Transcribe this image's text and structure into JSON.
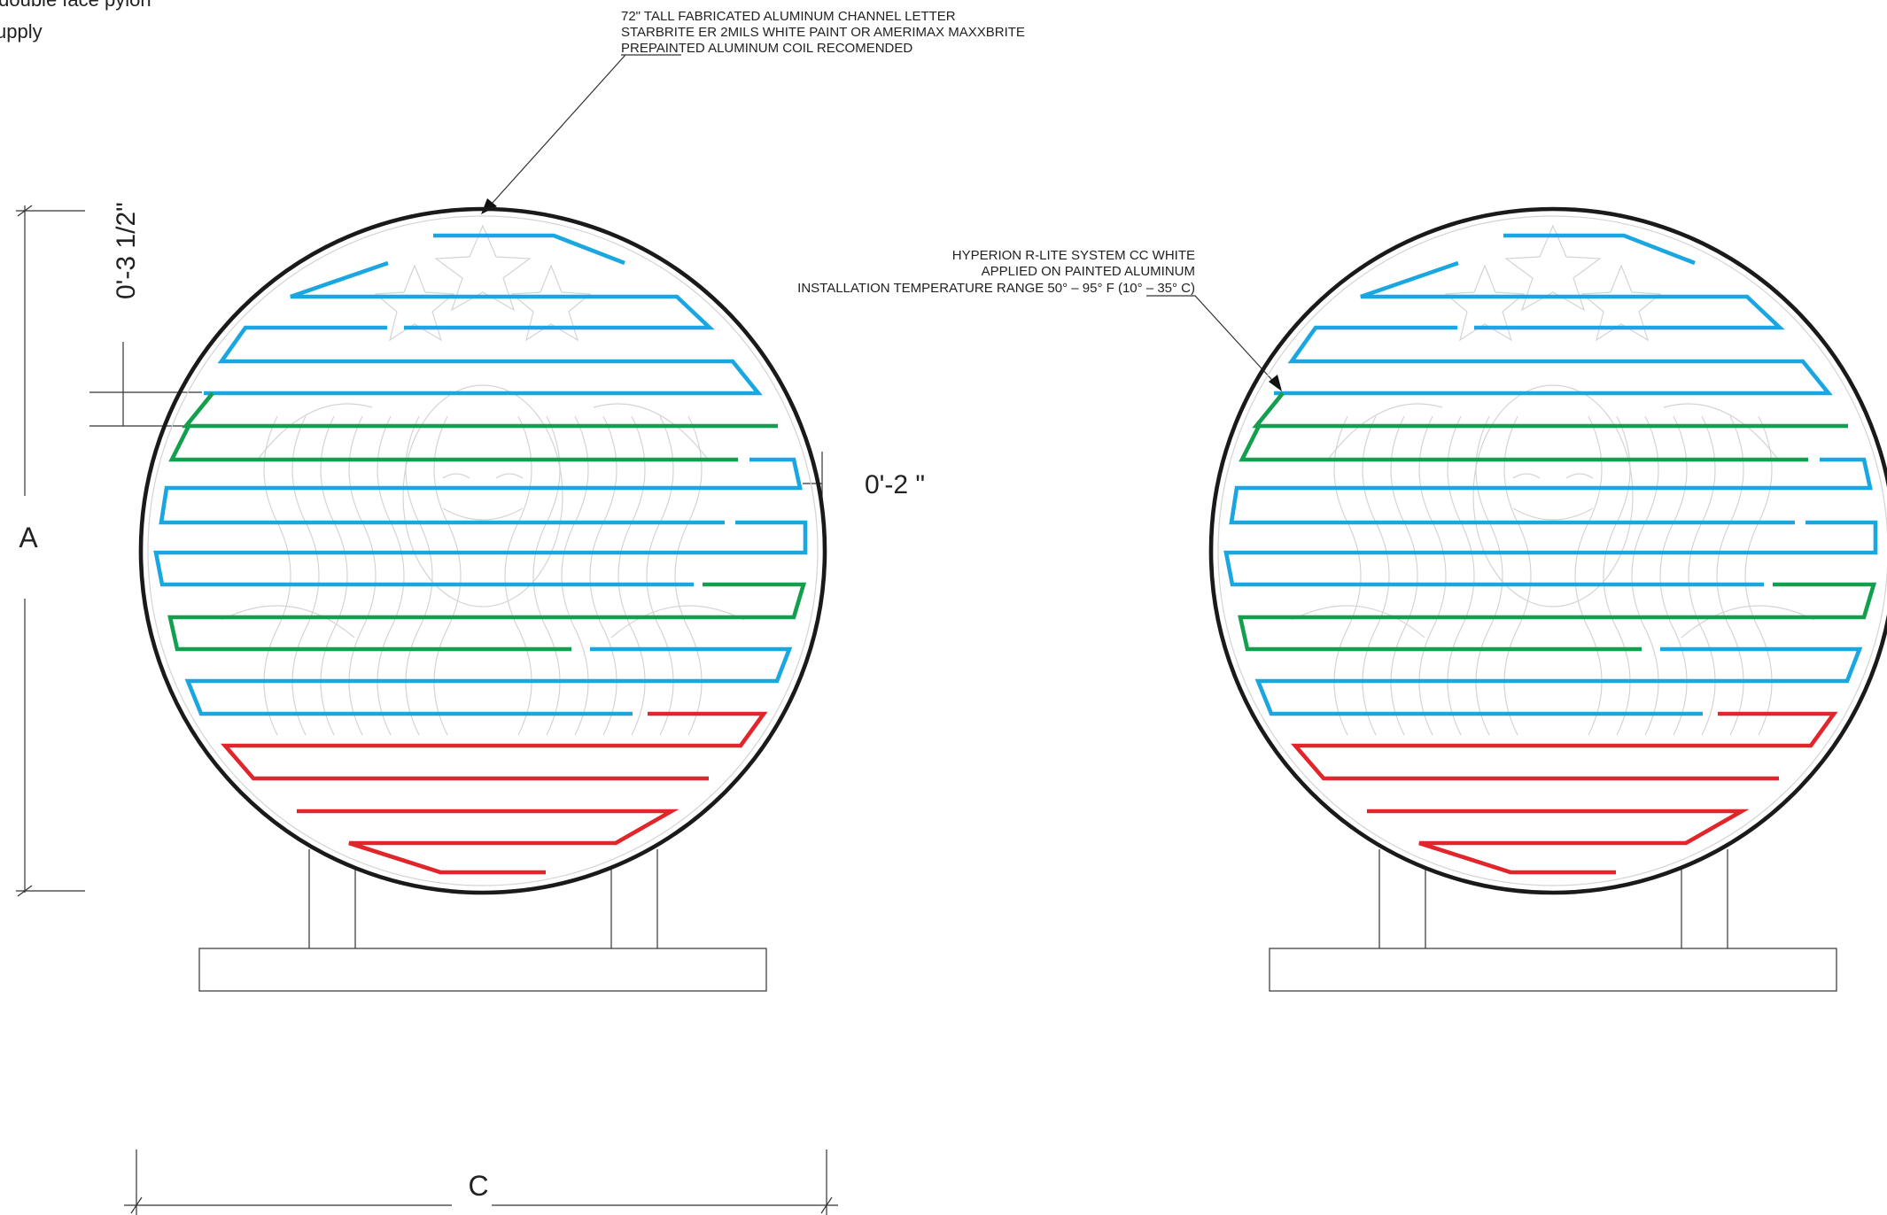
{
  "header": {
    "line1": "/double face pylon",
    "line2": "upply"
  },
  "notes": {
    "channel_letter": [
      "72\" TALL FABRICATED ALUMINUM CHANNEL LETTER",
      "STARBRITE  ER 2MILS WHITE PAINT OR AMERIMAX MAXXBRITE",
      "PREPAINTED ALUMINUM COIL RECOMENDED"
    ],
    "led_system": [
      "HYPERION R-LITE SYSTEM CC WHITE",
      "APPLIED ON PAINTED ALUMINUM",
      "INSTALLATION TEMPERATURE RANGE 50° – 95° F (10° – 35° C)"
    ]
  },
  "dimensions": {
    "top_offset": "0'-3 1/2\"",
    "row_spacing": "0'-2 \"",
    "height_label": "A",
    "width_label": "C"
  },
  "colors": {
    "outline": "#1a1a1a",
    "led_blue": "#1aa7e1",
    "led_green": "#13a04e",
    "led_red": "#e2242b",
    "watermark": "#d4d4d4"
  }
}
